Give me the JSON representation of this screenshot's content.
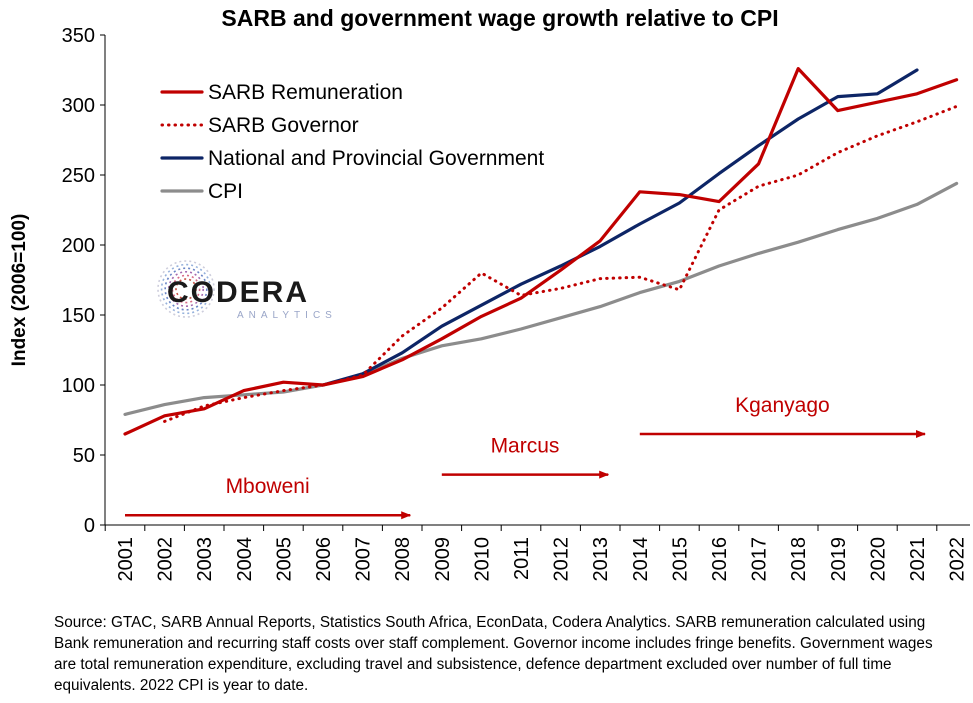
{
  "chart_data": {
    "type": "line",
    "title": "SARB and government wage growth relative to CPI",
    "ylabel": "Index (2006=100)",
    "xlabel": "",
    "ylim": [
      0,
      350
    ],
    "yticks": [
      0,
      50,
      100,
      150,
      200,
      250,
      300,
      350
    ],
    "grid": false,
    "legend_position": "top-left",
    "categories": [
      "2001",
      "2002",
      "2003",
      "2004",
      "2005",
      "2006",
      "2007",
      "2008",
      "2009",
      "2010",
      "2011",
      "2012",
      "2013",
      "2014",
      "2015",
      "2016",
      "2017",
      "2018",
      "2019",
      "2020",
      "2021",
      "2022"
    ],
    "series": [
      {
        "name": "SARB Remuneration",
        "color": "#c00000",
        "style": "solid",
        "values": [
          65,
          78,
          83,
          96,
          102,
          100,
          106,
          118,
          133,
          149,
          162,
          182,
          203,
          238,
          236,
          231,
          258,
          326,
          296,
          302,
          308,
          318
        ]
      },
      {
        "name": "SARB Governor",
        "color": "#c00000",
        "style": "dotted",
        "values": [
          null,
          74,
          85,
          91,
          96,
          100,
          107,
          135,
          155,
          180,
          164,
          169,
          176,
          177,
          168,
          225,
          242,
          250,
          266,
          278,
          288,
          299
        ]
      },
      {
        "name": "National and Provincial Government",
        "color": "#0d2566",
        "style": "solid",
        "values": [
          null,
          null,
          null,
          null,
          null,
          100,
          108,
          123,
          142,
          157,
          172,
          185,
          199,
          215,
          230,
          251,
          271,
          290,
          306,
          308,
          325,
          null
        ]
      },
      {
        "name": "CPI",
        "color": "#8c8c8c",
        "style": "solid",
        "values": [
          79,
          86,
          91,
          93,
          95,
          100,
          107,
          119,
          128,
          133,
          140,
          148,
          156,
          166,
          174,
          185,
          194,
          202,
          211,
          219,
          229,
          244
        ]
      }
    ],
    "annotations": [
      {
        "label": "Mboweni",
        "from_year": "2001",
        "to_year": "2008",
        "value": 7
      },
      {
        "label": "Marcus",
        "from_year": "2009",
        "to_year": "2013",
        "value": 36
      },
      {
        "label": "Kganyago",
        "from_year": "2014",
        "to_year": "2021",
        "value": 65
      }
    ]
  },
  "logo": {
    "name": "CODERA",
    "sub": "ANALYTICS"
  },
  "source_note": "Source: GTAC, SARB Annual Reports, Statistics South Africa, EconData, Codera Analytics. SARB remuneration calculated using Bank remuneration and recurring staff costs over staff complement. Governor income includes fringe benefits. Government wages are total remuneration expenditure, excluding travel and subsistence, defence department excluded over number of full time equivalents. 2022 CPI is year to date."
}
